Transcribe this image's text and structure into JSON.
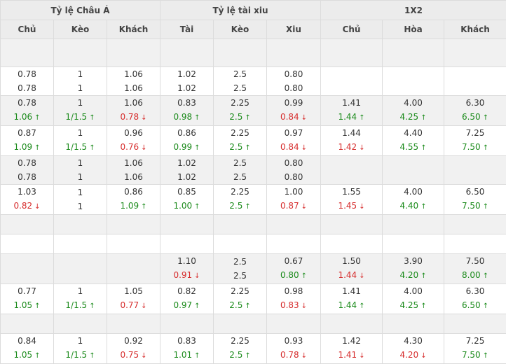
{
  "colors": {
    "up": "#1a8a1a",
    "down": "#d62c2c",
    "header_bg": "#ececec",
    "shade_bg": "#f1f1f1"
  },
  "icons": {
    "up": "arrow-up-icon",
    "down": "arrow-down-icon"
  },
  "groups": [
    "Tỷ lệ Châu Á",
    "Tỷ lệ tài xiu",
    "1X2"
  ],
  "columns": [
    "Chủ",
    "Kèo",
    "Khách",
    "Tài",
    "Kèo",
    "Xiu",
    "Chủ",
    "Hòa",
    "Khách"
  ],
  "rows": [
    {
      "shade": true,
      "tall": false,
      "cells": [
        [],
        [],
        [],
        [],
        [],
        [],
        [],
        [],
        []
      ]
    },
    {
      "shade": false,
      "tall": false,
      "cells": [
        [
          {
            "v": "0.78"
          },
          {
            "v": "0.78"
          }
        ],
        [
          {
            "v": "1"
          },
          {
            "v": "1"
          }
        ],
        [
          {
            "v": "1.06"
          },
          {
            "v": "1.06"
          }
        ],
        [
          {
            "v": "1.02"
          },
          {
            "v": "1.02"
          }
        ],
        [
          {
            "v": "2.5"
          },
          {
            "v": "2.5"
          }
        ],
        [
          {
            "v": "0.80"
          },
          {
            "v": "0.80"
          }
        ],
        [],
        [],
        []
      ]
    },
    {
      "shade": true,
      "tall": false,
      "cells": [
        [
          {
            "v": "0.78"
          },
          {
            "v": "1.06",
            "t": "up"
          }
        ],
        [
          {
            "v": "1"
          },
          {
            "v": "1/1.5",
            "t": "up"
          }
        ],
        [
          {
            "v": "1.06"
          },
          {
            "v": "0.78",
            "t": "down"
          }
        ],
        [
          {
            "v": "0.83"
          },
          {
            "v": "0.98",
            "t": "up"
          }
        ],
        [
          {
            "v": "2.25"
          },
          {
            "v": "2.5",
            "t": "up"
          }
        ],
        [
          {
            "v": "0.99"
          },
          {
            "v": "0.84",
            "t": "down"
          }
        ],
        [
          {
            "v": "1.41"
          },
          {
            "v": "1.44",
            "t": "up"
          }
        ],
        [
          {
            "v": "4.00"
          },
          {
            "v": "4.25",
            "t": "up"
          }
        ],
        [
          {
            "v": "6.30"
          },
          {
            "v": "6.50",
            "t": "up"
          }
        ]
      ]
    },
    {
      "shade": false,
      "tall": false,
      "cells": [
        [
          {
            "v": "0.87"
          },
          {
            "v": "1.09",
            "t": "up"
          }
        ],
        [
          {
            "v": "1"
          },
          {
            "v": "1/1.5",
            "t": "up"
          }
        ],
        [
          {
            "v": "0.96"
          },
          {
            "v": "0.76",
            "t": "down"
          }
        ],
        [
          {
            "v": "0.86"
          },
          {
            "v": "0.99",
            "t": "up"
          }
        ],
        [
          {
            "v": "2.25"
          },
          {
            "v": "2.5",
            "t": "up"
          }
        ],
        [
          {
            "v": "0.97"
          },
          {
            "v": "0.84",
            "t": "down"
          }
        ],
        [
          {
            "v": "1.44"
          },
          {
            "v": "1.42",
            "t": "down"
          }
        ],
        [
          {
            "v": "4.40"
          },
          {
            "v": "4.55",
            "t": "up"
          }
        ],
        [
          {
            "v": "7.25"
          },
          {
            "v": "7.50",
            "t": "up"
          }
        ]
      ]
    },
    {
      "shade": true,
      "tall": false,
      "cells": [
        [
          {
            "v": "0.78"
          },
          {
            "v": "0.78"
          }
        ],
        [
          {
            "v": "1"
          },
          {
            "v": "1"
          }
        ],
        [
          {
            "v": "1.06"
          },
          {
            "v": "1.06"
          }
        ],
        [
          {
            "v": "1.02"
          },
          {
            "v": "1.02"
          }
        ],
        [
          {
            "v": "2.5"
          },
          {
            "v": "2.5"
          }
        ],
        [
          {
            "v": "0.80"
          },
          {
            "v": "0.80"
          }
        ],
        [],
        [],
        []
      ]
    },
    {
      "shade": false,
      "tall": false,
      "cells": [
        [
          {
            "v": "1.03"
          },
          {
            "v": "0.82",
            "t": "down"
          }
        ],
        [
          {
            "v": "1"
          },
          {
            "v": "1"
          }
        ],
        [
          {
            "v": "0.86"
          },
          {
            "v": "1.09",
            "t": "up"
          }
        ],
        [
          {
            "v": "0.85"
          },
          {
            "v": "1.00",
            "t": "up"
          }
        ],
        [
          {
            "v": "2.25"
          },
          {
            "v": "2.5",
            "t": "up"
          }
        ],
        [
          {
            "v": "1.00"
          },
          {
            "v": "0.87",
            "t": "down"
          }
        ],
        [
          {
            "v": "1.55"
          },
          {
            "v": "1.45",
            "t": "down"
          }
        ],
        [
          {
            "v": "4.00"
          },
          {
            "v": "4.40",
            "t": "up"
          }
        ],
        [
          {
            "v": "6.50"
          },
          {
            "v": "7.50",
            "t": "up"
          }
        ]
      ]
    },
    {
      "shade": true,
      "tall": true,
      "cells": [
        [],
        [],
        [],
        [],
        [],
        [],
        [],
        [],
        []
      ]
    },
    {
      "shade": false,
      "tall": true,
      "cells": [
        [],
        [],
        [],
        [],
        [],
        [],
        [],
        [],
        []
      ]
    },
    {
      "shade": true,
      "tall": false,
      "cells": [
        [],
        [],
        [],
        [
          {
            "v": "1.10"
          },
          {
            "v": "0.91",
            "t": "down"
          }
        ],
        [
          {
            "v": "2.5"
          },
          {
            "v": "2.5"
          }
        ],
        [
          {
            "v": "0.67"
          },
          {
            "v": "0.80",
            "t": "up"
          }
        ],
        [
          {
            "v": "1.50"
          },
          {
            "v": "1.44",
            "t": "down"
          }
        ],
        [
          {
            "v": "3.90"
          },
          {
            "v": "4.20",
            "t": "up"
          }
        ],
        [
          {
            "v": "7.50"
          },
          {
            "v": "8.00",
            "t": "up"
          }
        ]
      ]
    },
    {
      "shade": false,
      "tall": false,
      "cells": [
        [
          {
            "v": "0.77"
          },
          {
            "v": "1.05",
            "t": "up"
          }
        ],
        [
          {
            "v": "1"
          },
          {
            "v": "1/1.5",
            "t": "up"
          }
        ],
        [
          {
            "v": "1.05"
          },
          {
            "v": "0.77",
            "t": "down"
          }
        ],
        [
          {
            "v": "0.82"
          },
          {
            "v": "0.97",
            "t": "up"
          }
        ],
        [
          {
            "v": "2.25"
          },
          {
            "v": "2.5",
            "t": "up"
          }
        ],
        [
          {
            "v": "0.98"
          },
          {
            "v": "0.83",
            "t": "down"
          }
        ],
        [
          {
            "v": "1.41"
          },
          {
            "v": "1.44",
            "t": "up"
          }
        ],
        [
          {
            "v": "4.00"
          },
          {
            "v": "4.25",
            "t": "up"
          }
        ],
        [
          {
            "v": "6.30"
          },
          {
            "v": "6.50",
            "t": "up"
          }
        ]
      ]
    },
    {
      "shade": true,
      "tall": true,
      "cells": [
        [],
        [],
        [],
        [],
        [],
        [],
        [],
        [],
        []
      ]
    },
    {
      "shade": false,
      "tall": false,
      "cells": [
        [
          {
            "v": "0.84"
          },
          {
            "v": "1.05",
            "t": "up"
          }
        ],
        [
          {
            "v": "1"
          },
          {
            "v": "1/1.5",
            "t": "up"
          }
        ],
        [
          {
            "v": "0.92"
          },
          {
            "v": "0.75",
            "t": "down"
          }
        ],
        [
          {
            "v": "0.83"
          },
          {
            "v": "1.01",
            "t": "up"
          }
        ],
        [
          {
            "v": "2.25"
          },
          {
            "v": "2.5",
            "t": "up"
          }
        ],
        [
          {
            "v": "0.93"
          },
          {
            "v": "0.78",
            "t": "down"
          }
        ],
        [
          {
            "v": "1.42"
          },
          {
            "v": "1.41",
            "t": "down"
          }
        ],
        [
          {
            "v": "4.30"
          },
          {
            "v": "4.20",
            "t": "down"
          }
        ],
        [
          {
            "v": "7.25"
          },
          {
            "v": "7.50",
            "t": "up"
          }
        ]
      ]
    }
  ]
}
